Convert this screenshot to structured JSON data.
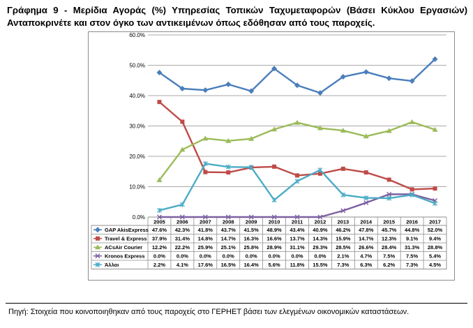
{
  "title": "Γράφημα 9 - Μερίδια Αγοράς (%) Υπηρεσίας Τοπικών Ταχυμεταφορών (Βάσει Κύκλου Εργασιών) Ανταποκρινέτε και στον όγκο των αντικειμένων όπως εδόθησαν από τους παροχείς.",
  "source": "Πηγή:  Στοιχεία που κοινοποιηθηκαν από τους παροχείς στο ΓΕΡΗΕΤ βάσει των ελεγμένων οικονομικών καταστάσεων.",
  "chart_data": {
    "type": "line",
    "title": "",
    "xlabel": "",
    "ylabel": "",
    "ylim": [
      0,
      60
    ],
    "y_ticks": [
      "0.0%",
      "10.0%",
      "20.0%",
      "30.0%",
      "40.0%",
      "50.0%",
      "60.0%"
    ],
    "grid": true,
    "legend": "data-table",
    "categories": [
      "2005",
      "2006",
      "2007",
      "2008",
      "2009",
      "2010",
      "2011",
      "2012",
      "2013",
      "2014",
      "2015",
      "2016",
      "2017"
    ],
    "series": [
      {
        "name": "GAP AkisExpress",
        "color": "#4a7ebb",
        "marker": "diamond",
        "values": [
          47.6,
          42.3,
          41.8,
          43.7,
          41.5,
          48.9,
          43.4,
          40.9,
          46.2,
          47.8,
          45.7,
          44.8,
          52.0
        ],
        "labels": [
          "47.6%",
          "42.3%",
          "41.8%",
          "43.7%",
          "41.5%",
          "48.9%",
          "43.4%",
          "40.9%",
          "46.2%",
          "47.8%",
          "45.7%",
          "44.8%",
          "52.0%"
        ]
      },
      {
        "name": "Travel & Express",
        "color": "#be4b48",
        "marker": "square",
        "values": [
          37.9,
          31.4,
          14.8,
          14.7,
          16.3,
          16.6,
          13.7,
          14.3,
          15.9,
          14.7,
          12.3,
          9.1,
          9.4
        ],
        "labels": [
          "37.9%",
          "31.4%",
          "14.8%",
          "14.7%",
          "16.3%",
          "16.6%",
          "13.7%",
          "14.3%",
          "15.9%",
          "14.7%",
          "12.3%",
          "9.1%",
          "9.4%"
        ]
      },
      {
        "name": "ACsAir Courier",
        "color": "#9bbb59",
        "marker": "triangle",
        "values": [
          12.2,
          22.2,
          25.9,
          25.1,
          25.8,
          28.9,
          31.1,
          29.3,
          28.5,
          26.6,
          28.4,
          31.3,
          28.8
        ],
        "labels": [
          "12.2%",
          "22.2%",
          "25.9%",
          "25.1%",
          "25.8%",
          "28.9%",
          "31.1%",
          "29.3%",
          "28.5%",
          "26.6%",
          "28.4%",
          "31.3%",
          "28.8%"
        ]
      },
      {
        "name": "Kronos Express",
        "color": "#7d60a0",
        "marker": "x",
        "values": [
          0.0,
          0.0,
          0.0,
          0.0,
          0.0,
          0.0,
          0.0,
          0.0,
          2.1,
          4.7,
          7.5,
          7.5,
          5.4
        ],
        "labels": [
          "0.0%",
          "0.0%",
          "0.0%",
          "0.0%",
          "0.0%",
          "0.0%",
          "0.0%",
          "0.0%",
          "2.1%",
          "4.7%",
          "7.5%",
          "7.5%",
          "5.4%"
        ]
      },
      {
        "name": "Άλλοι",
        "color": "#4bacc6",
        "marker": "star",
        "values": [
          2.2,
          4.1,
          17.6,
          16.5,
          16.4,
          5.6,
          11.8,
          15.5,
          7.3,
          6.3,
          6.2,
          7.3,
          4.5
        ],
        "labels": [
          "2.2%",
          "4.1%",
          "17.6%",
          "16.5%",
          "16.4%",
          "5.6%",
          "11.8%",
          "15.5%",
          "7.3%",
          "6.3%",
          "6.2%",
          "7.3%",
          "4.5%"
        ]
      }
    ]
  }
}
